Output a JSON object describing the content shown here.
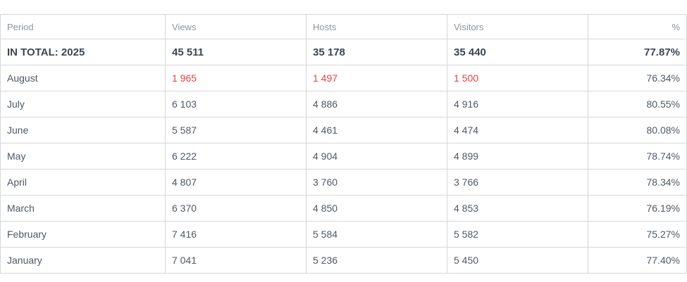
{
  "table": {
    "headers": {
      "period": "Period",
      "views": "Views",
      "hosts": "Hosts",
      "visitors": "Visitors",
      "percent": "%"
    },
    "total": {
      "period": "IN TOTAL: 2025",
      "views": "45 511",
      "hosts": "35 178",
      "visitors": "35 440",
      "percent": "77.87%"
    },
    "rows": [
      {
        "period": "August",
        "views": "1 965",
        "hosts": "1 497",
        "visitors": "1 500",
        "percent": "76.34%"
      },
      {
        "period": "July",
        "views": "6 103",
        "hosts": "4 886",
        "visitors": "4 916",
        "percent": "80.55%"
      },
      {
        "period": "June",
        "views": "5 587",
        "hosts": "4 461",
        "visitors": "4 474",
        "percent": "80.08%"
      },
      {
        "period": "May",
        "views": "6 222",
        "hosts": "4 904",
        "visitors": "4 899",
        "percent": "78.74%"
      },
      {
        "period": "April",
        "views": "4 807",
        "hosts": "3 760",
        "visitors": "3 766",
        "percent": "78.34%"
      },
      {
        "period": "March",
        "views": "6 370",
        "hosts": "4 850",
        "visitors": "4 853",
        "percent": "76.19%"
      },
      {
        "period": "February",
        "views": "7 416",
        "hosts": "5 584",
        "visitors": "5 582",
        "percent": "75.27%"
      },
      {
        "period": "January",
        "views": "7 041",
        "hosts": "5 236",
        "visitors": "5 450",
        "percent": "77.40%"
      }
    ]
  },
  "colors": {
    "current_month": "#e0433f",
    "border": "#d5d7da",
    "header_text": "#8d949c",
    "body_text": "#4f5864"
  }
}
